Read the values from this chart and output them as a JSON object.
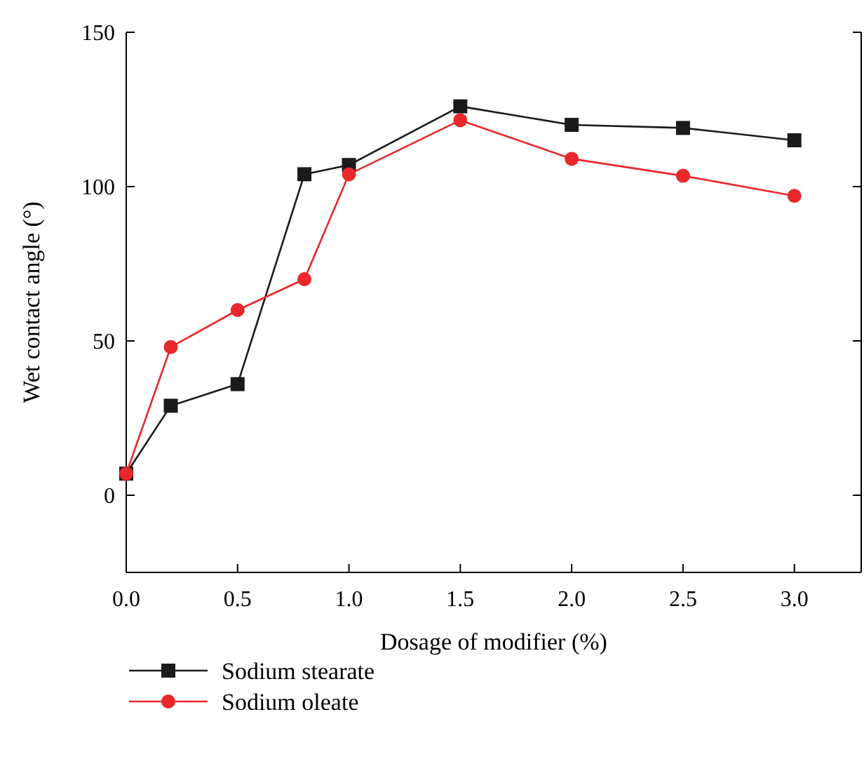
{
  "chart_data": {
    "type": "line",
    "xlabel": "Dosage of modifier (%)",
    "ylabel": "Wet contact angle (°)",
    "xlim": [
      0,
      3.3
    ],
    "xticks": [
      {
        "value": 0,
        "label": "0.0"
      },
      {
        "value": 0.5,
        "label": "0.5"
      },
      {
        "value": 1,
        "label": "1.0"
      },
      {
        "value": 1.5,
        "label": "1.5"
      },
      {
        "value": 2,
        "label": "2.0"
      },
      {
        "value": 2.5,
        "label": "2.5"
      },
      {
        "value": 3,
        "label": "3.0"
      }
    ],
    "ylim": [
      -25,
      150
    ],
    "yticks": [
      0,
      50,
      100,
      150
    ],
    "grid": false,
    "legend": "bottom",
    "line_style": "solid",
    "series": [
      {
        "name": "Sodium stearate",
        "color": "#1a1a1a",
        "marker": "square",
        "x": [
          0,
          0.2,
          0.5,
          0.8,
          1.0,
          1.5,
          2.0,
          2.5,
          3.0
        ],
        "values": [
          7,
          29,
          36,
          104,
          107,
          126,
          120,
          119,
          115
        ]
      },
      {
        "name": "Sodium oleate",
        "color": "#e8282b",
        "marker": "circle",
        "x": [
          0,
          0.2,
          0.5,
          0.8,
          1.0,
          1.5,
          2.0,
          2.5,
          3.0
        ],
        "values": [
          7,
          48,
          60,
          70,
          104,
          121.5,
          109,
          103.5,
          97
        ]
      }
    ]
  }
}
